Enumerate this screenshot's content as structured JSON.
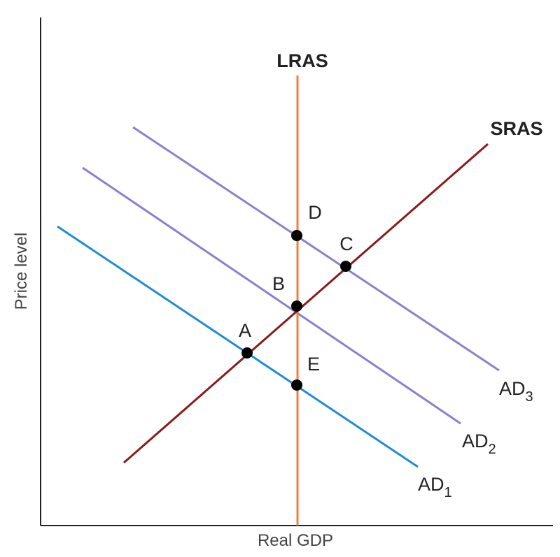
{
  "axes": {
    "y_label": "Price level",
    "x_label": "Real GDP"
  },
  "curves": {
    "lras": {
      "label": "LRAS"
    },
    "sras": {
      "label": "SRAS"
    },
    "ad1": {
      "label": "AD",
      "subscript": "1"
    },
    "ad2": {
      "label": "AD",
      "subscript": "2"
    },
    "ad3": {
      "label": "AD",
      "subscript": "3"
    }
  },
  "points": [
    "A",
    "B",
    "C",
    "D",
    "E"
  ]
}
